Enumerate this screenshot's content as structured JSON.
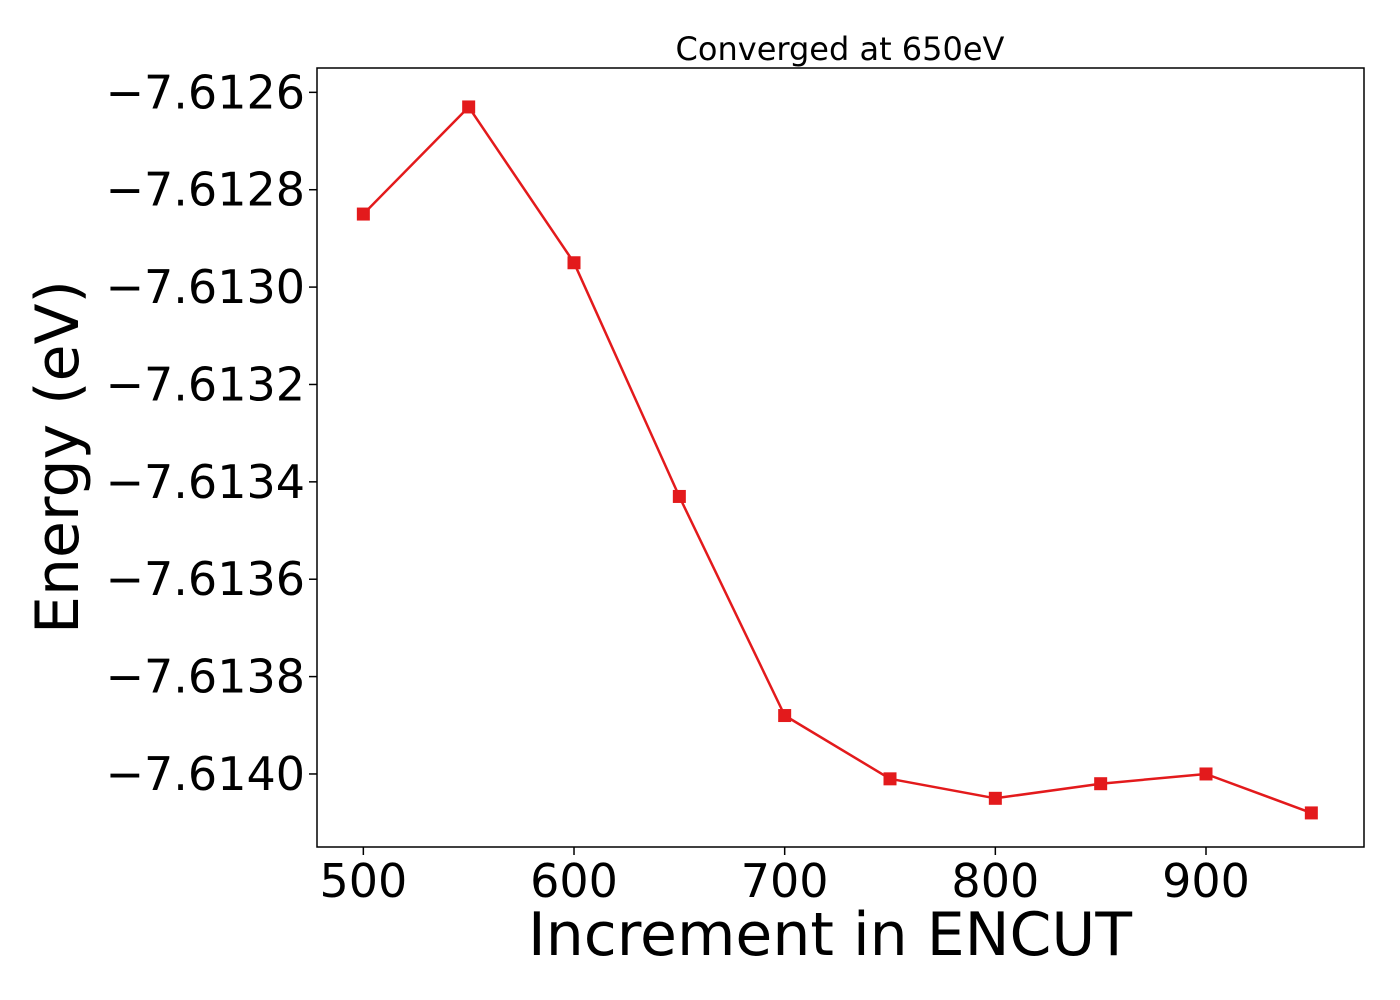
{
  "chart_data": {
    "type": "line",
    "title": "Converged at 650eV",
    "xlabel": "Increment in ENCUT",
    "ylabel": "Energy (eV)",
    "x": [
      500,
      550,
      600,
      650,
      700,
      750,
      800,
      850,
      900,
      950
    ],
    "series": [
      {
        "values": [
          -7.61285,
          -7.61263,
          -7.61295,
          -7.61343,
          -7.61388,
          -7.61401,
          -7.61405,
          -7.61402,
          -7.614,
          -7.61408
        ],
        "color": "#e31a1c",
        "marker": "square"
      }
    ],
    "xlim": [
      478,
      975
    ],
    "ylim": [
      -7.61415,
      -7.61255
    ],
    "xticks": [
      500,
      600,
      700,
      800,
      900
    ],
    "xtick_labels": [
      "500",
      "600",
      "700",
      "800",
      "900"
    ],
    "yticks": [
      -7.6126,
      -7.6128,
      -7.613,
      -7.6132,
      -7.6134,
      -7.6136,
      -7.6138,
      -7.614
    ],
    "ytick_labels": [
      "−7.6126",
      "−7.6128",
      "−7.6130",
      "−7.6132",
      "−7.6134",
      "−7.6136",
      "−7.6138",
      "−7.6140"
    ],
    "grid": false,
    "legend": "none"
  }
}
